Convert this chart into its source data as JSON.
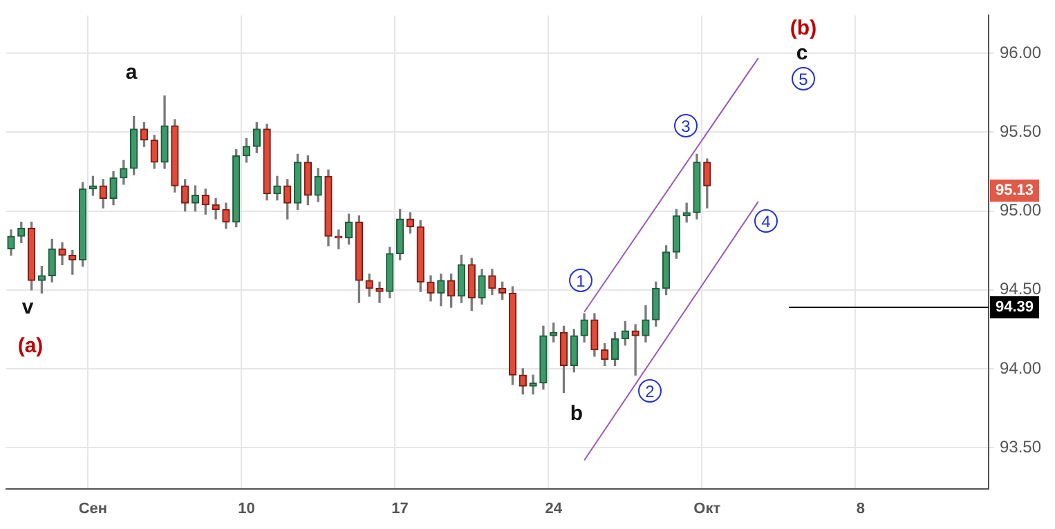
{
  "chart_data": {
    "type": "candlestick",
    "categories": [
      null,
      null,
      null,
      null,
      null,
      null,
      null,
      null,
      "Сен",
      null,
      null,
      null,
      null,
      null,
      null,
      null,
      null,
      null,
      null,
      null,
      null,
      null,
      null,
      "10",
      null,
      null,
      null,
      null,
      null,
      null,
      null,
      null,
      null,
      null,
      null,
      null,
      null,
      null,
      "17",
      null,
      null,
      null,
      null,
      null,
      null,
      null,
      null,
      null,
      null,
      null,
      null,
      null,
      null,
      "24",
      null,
      null,
      null,
      null,
      null,
      null,
      null,
      null,
      null,
      null,
      null,
      null,
      null,
      null,
      "Окт",
      null,
      null,
      null,
      null,
      null,
      null,
      null,
      null,
      null,
      null,
      null,
      null,
      null,
      null,
      "8",
      null,
      null,
      null,
      null,
      null,
      null,
      null,
      null,
      null,
      null,
      null,
      null
    ],
    "ohlc": [
      [
        94.76,
        94.88,
        94.72,
        94.84
      ],
      [
        94.84,
        94.93,
        94.8,
        94.89
      ],
      [
        94.89,
        94.93,
        94.5,
        94.56
      ],
      [
        94.56,
        94.65,
        94.48,
        94.59
      ],
      [
        94.59,
        94.82,
        94.55,
        94.76
      ],
      [
        94.76,
        94.8,
        94.66,
        94.72
      ],
      [
        94.72,
        94.75,
        94.6,
        94.69
      ],
      [
        94.69,
        95.18,
        94.65,
        95.14
      ],
      [
        95.14,
        95.22,
        95.1,
        95.16
      ],
      [
        95.16,
        95.2,
        95.02,
        95.08
      ],
      [
        95.08,
        95.25,
        95.04,
        95.21
      ],
      [
        95.21,
        95.32,
        95.17,
        95.27
      ],
      [
        95.27,
        95.6,
        95.23,
        95.52
      ],
      [
        95.52,
        95.56,
        95.41,
        95.45
      ],
      [
        95.45,
        95.48,
        95.27,
        95.31
      ],
      [
        95.31,
        95.73,
        95.27,
        95.54
      ],
      [
        95.54,
        95.58,
        95.12,
        95.16
      ],
      [
        95.16,
        95.2,
        95.0,
        95.05
      ],
      [
        95.05,
        95.16,
        95.0,
        95.1
      ],
      [
        95.1,
        95.14,
        94.98,
        95.04
      ],
      [
        95.04,
        95.08,
        94.95,
        95.01
      ],
      [
        95.01,
        95.05,
        94.89,
        94.93
      ],
      [
        94.93,
        95.39,
        94.9,
        95.35
      ],
      [
        95.35,
        95.46,
        95.31,
        95.41
      ],
      [
        95.41,
        95.56,
        95.37,
        95.52
      ],
      [
        95.52,
        95.55,
        95.07,
        95.11
      ],
      [
        95.11,
        95.22,
        95.07,
        95.16
      ],
      [
        95.16,
        95.2,
        94.95,
        95.05
      ],
      [
        95.05,
        95.36,
        95.01,
        95.31
      ],
      [
        95.31,
        95.35,
        95.04,
        95.1
      ],
      [
        95.1,
        95.27,
        95.06,
        95.22
      ],
      [
        95.22,
        95.26,
        94.78,
        94.84
      ],
      [
        94.84,
        94.88,
        94.76,
        94.83
      ],
      [
        94.83,
        94.98,
        94.79,
        94.93
      ],
      [
        94.93,
        94.97,
        94.42,
        94.56
      ],
      [
        94.56,
        94.6,
        94.46,
        94.51
      ],
      [
        94.51,
        94.55,
        94.42,
        94.49
      ],
      [
        94.49,
        94.77,
        94.45,
        94.73
      ],
      [
        94.73,
        95.01,
        94.69,
        94.95
      ],
      [
        94.95,
        94.99,
        94.86,
        94.9
      ],
      [
        94.9,
        94.94,
        94.49,
        94.55
      ],
      [
        94.55,
        94.59,
        94.43,
        94.48
      ],
      [
        94.48,
        94.6,
        94.4,
        94.56
      ],
      [
        94.56,
        94.6,
        94.39,
        94.46
      ],
      [
        94.46,
        94.72,
        94.42,
        94.66
      ],
      [
        94.66,
        94.7,
        94.37,
        94.45
      ],
      [
        94.45,
        94.63,
        94.41,
        94.59
      ],
      [
        94.59,
        94.63,
        94.47,
        94.51
      ],
      [
        94.51,
        94.55,
        94.44,
        94.48
      ],
      [
        94.48,
        94.52,
        93.9,
        93.96
      ],
      [
        93.96,
        94.0,
        93.84,
        93.89
      ],
      [
        93.89,
        93.96,
        93.84,
        93.91
      ],
      [
        93.91,
        94.27,
        93.87,
        94.21
      ],
      [
        94.21,
        94.29,
        94.17,
        94.23
      ],
      [
        94.23,
        94.27,
        93.85,
        94.02
      ],
      [
        94.02,
        94.25,
        93.98,
        94.21
      ],
      [
        94.21,
        94.35,
        94.17,
        94.31
      ],
      [
        94.31,
        94.35,
        94.08,
        94.12
      ],
      [
        94.12,
        94.16,
        94.02,
        94.06
      ],
      [
        94.06,
        94.23,
        94.02,
        94.19
      ],
      [
        94.19,
        94.3,
        94.15,
        94.24
      ],
      [
        94.24,
        94.28,
        93.96,
        94.21
      ],
      [
        94.21,
        94.4,
        94.17,
        94.31
      ],
      [
        94.31,
        94.55,
        94.27,
        94.51
      ],
      [
        94.51,
        94.78,
        94.47,
        94.74
      ],
      [
        94.74,
        95.01,
        94.7,
        94.97
      ],
      [
        94.97,
        95.05,
        94.93,
        94.99
      ],
      [
        94.99,
        95.36,
        94.95,
        95.31
      ],
      [
        95.31,
        95.33,
        95.02,
        95.16
      ],
      null,
      null,
      null,
      null,
      null,
      null,
      null,
      null,
      null,
      null,
      null,
      null,
      null,
      null,
      null,
      null,
      null,
      null,
      null,
      null,
      null,
      null,
      null,
      null,
      null,
      null,
      null
    ],
    "series": [
      {
        "type": "line",
        "color": "#9b59b6",
        "values": [
          null,
          null,
          null,
          null,
          null,
          null,
          null,
          null,
          null,
          null,
          null,
          null,
          null,
          null,
          null,
          null,
          null,
          null,
          null,
          null,
          null,
          null,
          null,
          null,
          null,
          null,
          null,
          null,
          null,
          null,
          null,
          null,
          null,
          null,
          null,
          null,
          null,
          null,
          null,
          null,
          null,
          null,
          null,
          null,
          null,
          null,
          null,
          null,
          null,
          null,
          null,
          null,
          null,
          null,
          null,
          null,
          94.36,
          null,
          null,
          null,
          null,
          null,
          null,
          null,
          null,
          null,
          null,
          null,
          null,
          null,
          null,
          null,
          null,
          95.97,
          null,
          null,
          null,
          null,
          null,
          null,
          null,
          null,
          null,
          null,
          null,
          null,
          null,
          null,
          null,
          null,
          null,
          null,
          null,
          null,
          null,
          null
        ]
      },
      {
        "type": "line",
        "color": "#9b59b6",
        "values": [
          null,
          null,
          null,
          null,
          null,
          null,
          null,
          null,
          null,
          null,
          null,
          null,
          null,
          null,
          null,
          null,
          null,
          null,
          null,
          null,
          null,
          null,
          null,
          null,
          null,
          null,
          null,
          null,
          null,
          null,
          null,
          null,
          null,
          null,
          null,
          null,
          null,
          null,
          null,
          null,
          null,
          null,
          null,
          null,
          null,
          null,
          null,
          null,
          null,
          null,
          null,
          null,
          null,
          null,
          null,
          null,
          93.42,
          null,
          null,
          null,
          null,
          null,
          null,
          null,
          null,
          null,
          null,
          null,
          null,
          null,
          null,
          null,
          null,
          95.06,
          null,
          null,
          null,
          null,
          null,
          null,
          null,
          null,
          null,
          null,
          null,
          null,
          null,
          null,
          null,
          null,
          null,
          null,
          null,
          null,
          null,
          null
        ]
      }
    ],
    "ylim": [
      93.24,
      96.24
    ],
    "yticks": [
      {
        "value": 93.5,
        "label": "93.50"
      },
      {
        "value": 94,
        "label": "94.00"
      },
      {
        "value": 94.5,
        "label": "94.50"
      },
      {
        "value": 95,
        "label": "95.00"
      },
      {
        "value": 95.5,
        "label": "95.50"
      },
      {
        "value": 96,
        "label": "96.00"
      }
    ],
    "grid": true,
    "legend": false,
    "ref_lines": [
      {
        "axis": "y",
        "value": 94.39,
        "label": "94.39",
        "color": "#000000"
      }
    ],
    "annotations": [
      "a",
      "v",
      "(a)",
      "b",
      "(b)",
      "c",
      "1",
      "2",
      "3",
      "4",
      "5",
      {
        "text": "95.13",
        "y": 95.13
      }
    ]
  }
}
